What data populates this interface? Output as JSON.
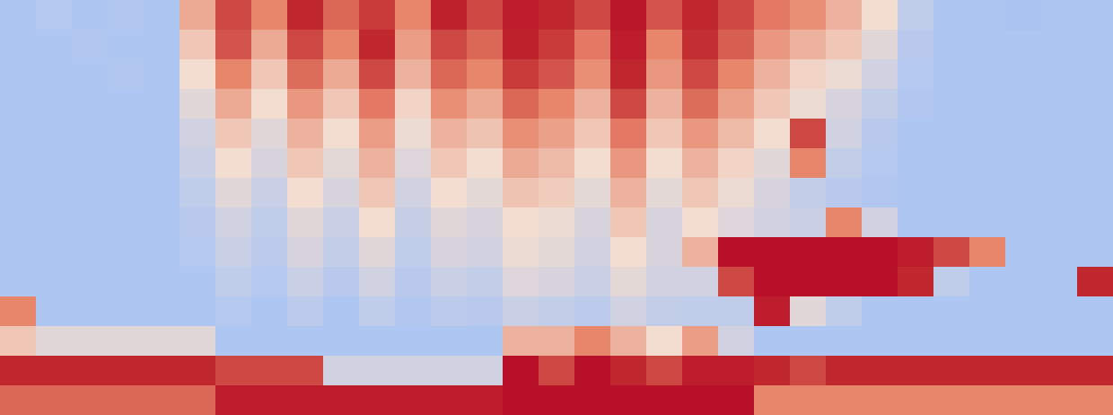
{
  "chart_data": {
    "type": "heatmap",
    "tick_labels": false,
    "zlim": [
      0,
      1
    ],
    "cells": [
      [
        0.3,
        0.32,
        0.3,
        0.31,
        0.3,
        0.62,
        0.8,
        0.7,
        0.85,
        0.75,
        0.82,
        0.7,
        0.88,
        0.8,
        0.9,
        0.85,
        0.8,
        0.92,
        0.78,
        0.86,
        0.8,
        0.72,
        0.68,
        0.6,
        0.5,
        0.35,
        0.3,
        0.3,
        0.29,
        0.3,
        0.3
      ],
      [
        0.3,
        0.3,
        0.31,
        0.3,
        0.3,
        0.55,
        0.78,
        0.62,
        0.8,
        0.7,
        0.85,
        0.65,
        0.8,
        0.75,
        0.88,
        0.82,
        0.72,
        0.9,
        0.7,
        0.84,
        0.76,
        0.66,
        0.6,
        0.55,
        0.45,
        0.33,
        0.3,
        0.3,
        0.3,
        0.3,
        0.3
      ],
      [
        0.3,
        0.3,
        0.3,
        0.31,
        0.3,
        0.5,
        0.7,
        0.55,
        0.74,
        0.62,
        0.8,
        0.6,
        0.75,
        0.7,
        0.82,
        0.78,
        0.68,
        0.86,
        0.66,
        0.8,
        0.7,
        0.6,
        0.52,
        0.48,
        0.4,
        0.32,
        0.3,
        0.3,
        0.3,
        0.3,
        0.3
      ],
      [
        0.3,
        0.3,
        0.3,
        0.3,
        0.3,
        0.45,
        0.62,
        0.5,
        0.66,
        0.55,
        0.72,
        0.52,
        0.68,
        0.62,
        0.75,
        0.7,
        0.6,
        0.8,
        0.6,
        0.74,
        0.64,
        0.55,
        0.48,
        0.42,
        0.36,
        0.31,
        0.3,
        0.3,
        0.3,
        0.3,
        0.3
      ],
      [
        0.3,
        0.3,
        0.3,
        0.3,
        0.3,
        0.4,
        0.55,
        0.45,
        0.6,
        0.5,
        0.65,
        0.48,
        0.6,
        0.56,
        0.68,
        0.64,
        0.55,
        0.72,
        0.55,
        0.66,
        0.58,
        0.5,
        0.8,
        0.4,
        0.33,
        0.3,
        0.3,
        0.3,
        0.3,
        0.3,
        0.3
      ],
      [
        0.3,
        0.3,
        0.3,
        0.3,
        0.3,
        0.38,
        0.5,
        0.42,
        0.55,
        0.46,
        0.6,
        0.44,
        0.55,
        0.5,
        0.62,
        0.58,
        0.5,
        0.66,
        0.5,
        0.6,
        0.52,
        0.45,
        0.7,
        0.36,
        0.32,
        0.3,
        0.3,
        0.3,
        0.3,
        0.3,
        0.3
      ],
      [
        0.3,
        0.3,
        0.3,
        0.3,
        0.3,
        0.35,
        0.45,
        0.38,
        0.5,
        0.42,
        0.55,
        0.4,
        0.5,
        0.46,
        0.56,
        0.54,
        0.46,
        0.6,
        0.46,
        0.55,
        0.48,
        0.42,
        0.36,
        0.33,
        0.31,
        0.3,
        0.3,
        0.3,
        0.3,
        0.3,
        0.3
      ],
      [
        0.3,
        0.3,
        0.3,
        0.3,
        0.3,
        0.33,
        0.4,
        0.35,
        0.45,
        0.38,
        0.5,
        0.37,
        0.45,
        0.42,
        0.5,
        0.48,
        0.42,
        0.55,
        0.42,
        0.5,
        0.44,
        0.4,
        0.38,
        0.7,
        0.4,
        0.3,
        0.3,
        0.3,
        0.3,
        0.3,
        0.3
      ],
      [
        0.3,
        0.3,
        0.3,
        0.3,
        0.3,
        0.32,
        0.38,
        0.34,
        0.42,
        0.36,
        0.45,
        0.35,
        0.42,
        0.4,
        0.48,
        0.46,
        0.4,
        0.5,
        0.42,
        0.6,
        0.95,
        0.95,
        0.95,
        0.95,
        0.95,
        0.9,
        0.8,
        0.7,
        0.3,
        0.3,
        0.3
      ],
      [
        0.3,
        0.3,
        0.3,
        0.3,
        0.3,
        0.3,
        0.35,
        0.32,
        0.38,
        0.33,
        0.4,
        0.33,
        0.38,
        0.36,
        0.44,
        0.42,
        0.38,
        0.46,
        0.4,
        0.4,
        0.8,
        0.95,
        0.95,
        0.95,
        0.95,
        0.85,
        0.35,
        0.3,
        0.3,
        0.3,
        0.85
      ],
      [
        0.7,
        0.3,
        0.3,
        0.3,
        0.3,
        0.3,
        0.32,
        0.3,
        0.34,
        0.3,
        0.35,
        0.31,
        0.34,
        0.33,
        0.38,
        0.36,
        0.34,
        0.4,
        0.36,
        0.35,
        0.35,
        0.9,
        0.45,
        0.35,
        0.3,
        0.3,
        0.3,
        0.3,
        0.3,
        0.3,
        0.3
      ],
      [
        0.55,
        0.45,
        0.45,
        0.45,
        0.45,
        0.45,
        0.3,
        0.3,
        0.3,
        0.3,
        0.3,
        0.3,
        0.3,
        0.3,
        0.6,
        0.6,
        0.7,
        0.6,
        0.5,
        0.65,
        0.4,
        0.3,
        0.3,
        0.3,
        0.3,
        0.3,
        0.3,
        0.3,
        0.3,
        0.3,
        0.3
      ],
      [
        0.85,
        0.85,
        0.85,
        0.85,
        0.85,
        0.85,
        0.8,
        0.8,
        0.8,
        0.4,
        0.4,
        0.4,
        0.4,
        0.4,
        0.95,
        0.8,
        0.95,
        0.85,
        0.8,
        0.9,
        0.9,
        0.85,
        0.8,
        0.85,
        0.85,
        0.85,
        0.85,
        0.85,
        0.85,
        0.85,
        0.85
      ],
      [
        0.75,
        0.75,
        0.75,
        0.75,
        0.75,
        0.75,
        0.9,
        0.9,
        0.9,
        0.9,
        0.9,
        0.9,
        0.9,
        0.9,
        0.95,
        0.95,
        0.95,
        0.95,
        0.95,
        0.95,
        0.95,
        0.7,
        0.7,
        0.7,
        0.7,
        0.7,
        0.7,
        0.7,
        0.7,
        0.7,
        0.7
      ]
    ]
  }
}
